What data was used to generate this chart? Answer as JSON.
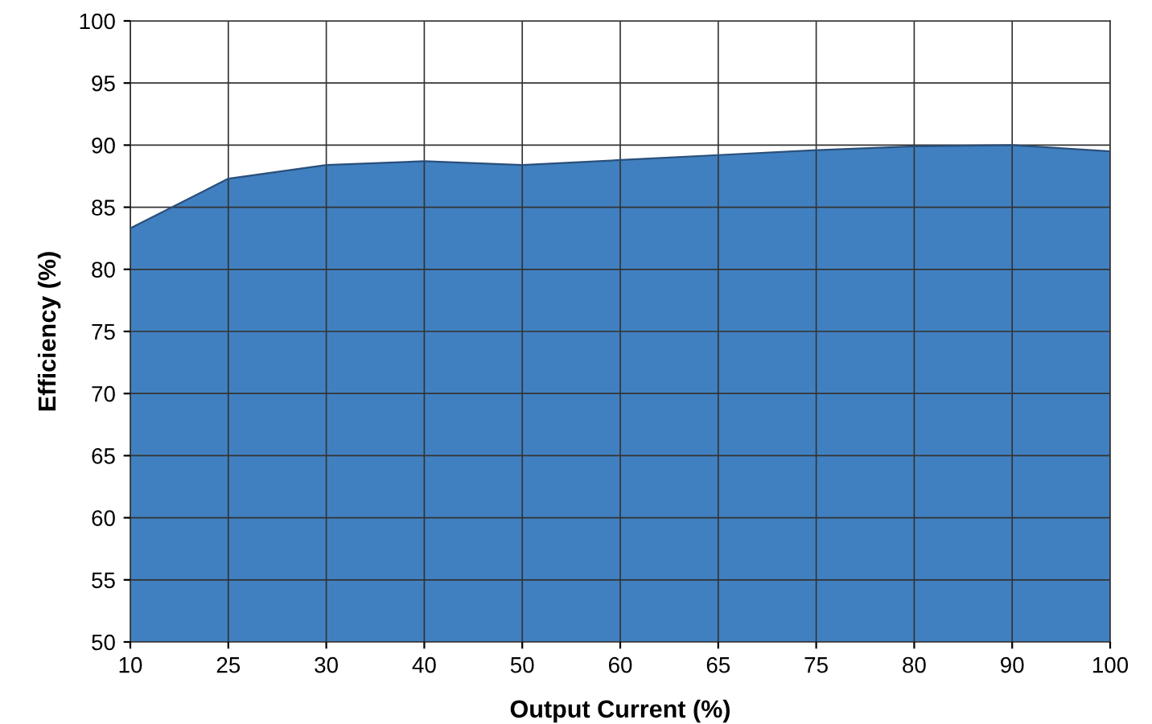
{
  "chart_data": {
    "type": "area",
    "xlabel": "Output Current (%)",
    "ylabel": "Efficiency (%)",
    "categories": [
      "10",
      "25",
      "30",
      "40",
      "50",
      "60",
      "65",
      "75",
      "80",
      "90",
      "100"
    ],
    "series": [
      {
        "color": "#4080c0",
        "values": [
          83.3,
          87.3,
          88.4,
          88.7,
          88.4,
          88.8,
          89.2,
          89.6,
          89.9,
          90.0,
          89.5
        ]
      }
    ],
    "ylim": [
      50,
      100
    ],
    "yticks": [
      50,
      55,
      60,
      65,
      70,
      75,
      80,
      85,
      90,
      95,
      100
    ],
    "grid": true,
    "legend": false
  }
}
